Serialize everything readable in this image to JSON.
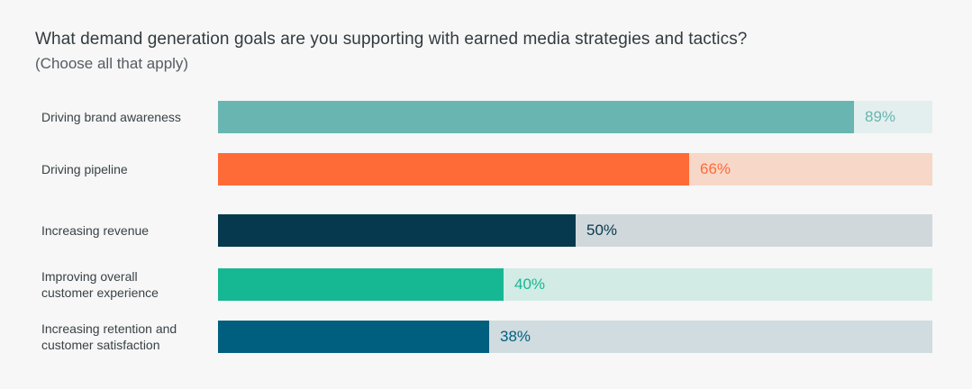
{
  "title": "What demand generation goals are you supporting with earned media strategies and tactics?",
  "subtitle": "(Choose all that apply)",
  "chart_data": {
    "type": "bar",
    "orientation": "horizontal",
    "title": "What demand generation goals are you supporting with earned media strategies and tactics?",
    "subtitle": "(Choose all that apply)",
    "xlim": [
      0,
      100
    ],
    "grid": false,
    "categories": [
      "Driving brand awareness",
      "Driving pipeline",
      "Increasing revenue",
      "Improving overall\ncustomer experience",
      "Increasing retention and\ncustomer satisfaction"
    ],
    "values": [
      89,
      66,
      50,
      40,
      38
    ],
    "value_labels": [
      "89%",
      "66%",
      "50%",
      "40%",
      "38%"
    ],
    "bar_colors": [
      "#68b5b2",
      "#ff6b37",
      "#06394d",
      "#16b793",
      "#005f7e"
    ],
    "track_colors": [
      "#e3efee",
      "#f7d7c8",
      "#d1d8db",
      "#d2ebe5",
      "#d0dcdf"
    ],
    "label_colors": [
      "#68b5b2",
      "#ff6b37",
      "#06394d",
      "#16b793",
      "#005f7e"
    ]
  }
}
